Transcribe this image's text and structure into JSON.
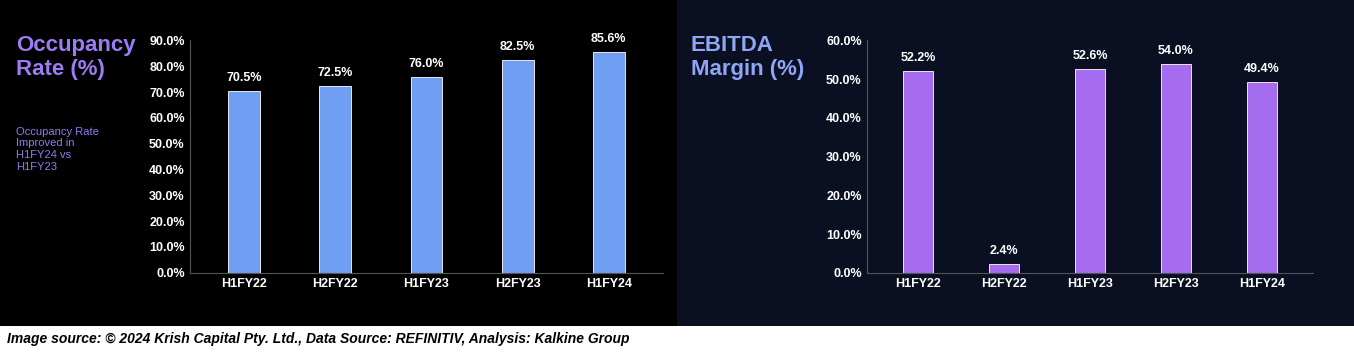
{
  "footer": "Image source: © 2024 Krish Capital Pty. Ltd., Data Source: REFINITIV, Analysis: Kalkine Group",
  "chart_data": [
    {
      "type": "bar",
      "title": "Occupancy Rate (%)",
      "annotation": "Occupancy Rate Improved in H1FY24 vs H1FY23",
      "categories": [
        "H1FY22",
        "H2FY22",
        "H1FY23",
        "H2FY23",
        "H1FY24"
      ],
      "values": [
        70.5,
        72.5,
        76.0,
        82.5,
        85.6
      ],
      "value_labels": [
        "70.5%",
        "72.5%",
        "76.0%",
        "82.5%",
        "85.6%"
      ],
      "data_labels": true,
      "color": "#6f9ef2",
      "grid": false,
      "ylim": [
        0,
        90
      ],
      "yticks": [
        {
          "value": 0,
          "label": "0.0%"
        },
        {
          "value": 10,
          "label": "10.0%"
        },
        {
          "value": 20,
          "label": "20.0%"
        },
        {
          "value": 30,
          "label": "30.0%"
        },
        {
          "value": 40,
          "label": "40.0%"
        },
        {
          "value": 50,
          "label": "50.0%"
        },
        {
          "value": 60,
          "label": "60.0%"
        },
        {
          "value": 70,
          "label": "70.0%"
        },
        {
          "value": 80,
          "label": "80.0%"
        },
        {
          "value": 90,
          "label": "90.0%"
        }
      ]
    },
    {
      "type": "bar",
      "title": "EBITDA Margin (%)",
      "categories": [
        "H1FY22",
        "H2FY22",
        "H1FY23",
        "H2FY23",
        "H1FY24"
      ],
      "values": [
        52.2,
        2.4,
        52.6,
        54.0,
        49.4
      ],
      "value_labels": [
        "52.2%",
        "2.4%",
        "52.6%",
        "54.0%",
        "49.4%"
      ],
      "data_labels": true,
      "color": "#a56cf0",
      "grid": false,
      "ylim": [
        0,
        60
      ],
      "yticks": [
        {
          "value": 0,
          "label": "0.0%"
        },
        {
          "value": 10,
          "label": "10.0%"
        },
        {
          "value": 20,
          "label": "20.0%"
        },
        {
          "value": 30,
          "label": "30.0%"
        },
        {
          "value": 40,
          "label": "40.0%"
        },
        {
          "value": 50,
          "label": "50.0%"
        },
        {
          "value": 60,
          "label": "60.0%"
        }
      ]
    }
  ]
}
